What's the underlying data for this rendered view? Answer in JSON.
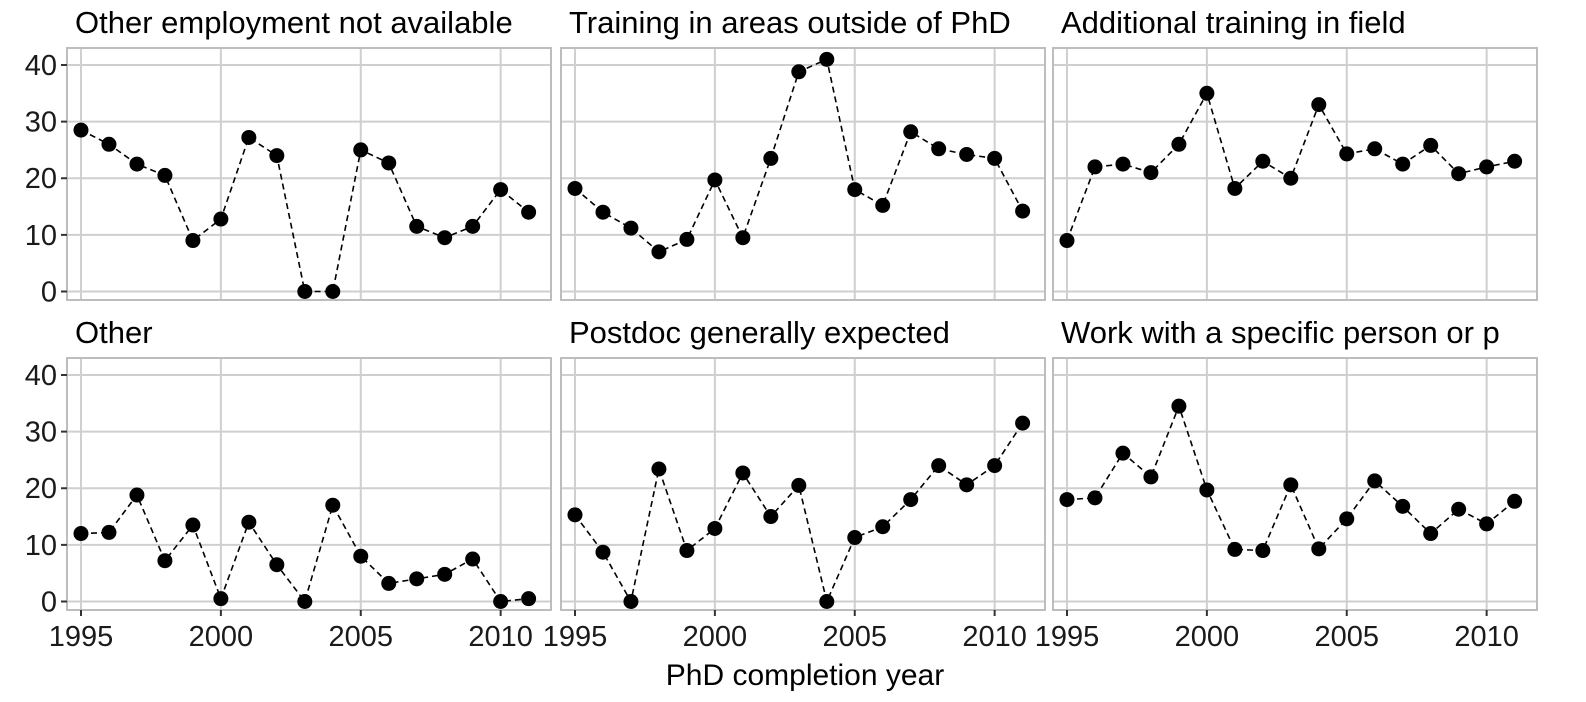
{
  "chart_data": {
    "type": "scatter",
    "layout": "facet-grid 2x3",
    "xlabel": "PhD completion year",
    "ylabel": "",
    "x": [
      1995,
      1996,
      1997,
      1998,
      1999,
      2000,
      2001,
      2002,
      2003,
      2004,
      2005,
      2006,
      2007,
      2008,
      2009,
      2010,
      2011
    ],
    "xlim": [
      1994.5,
      2011.8
    ],
    "ylim": [
      -1.5,
      43
    ],
    "x_ticks": [
      1995,
      2000,
      2005,
      2010
    ],
    "y_ticks": [
      0,
      10,
      20,
      30,
      40
    ],
    "grid": true,
    "legend": "none",
    "line_style": "dashed",
    "marker": "filled-circle",
    "color": "#000000",
    "panels": [
      {
        "title": "Other employment not available",
        "values": [
          28.5,
          26,
          22.5,
          20.5,
          9,
          12.8,
          27.2,
          24,
          0,
          0,
          25,
          22.7,
          11.5,
          9.5,
          11.5,
          18,
          14
        ]
      },
      {
        "title": "Training in areas outside of PhD",
        "values": [
          18.2,
          14,
          11.2,
          7,
          9.2,
          19.7,
          9.5,
          23.5,
          38.8,
          41,
          18,
          15.2,
          28.2,
          25.2,
          24.2,
          23.5,
          14.2
        ]
      },
      {
        "title": "Additional training in field",
        "values": [
          9,
          22,
          22.5,
          21,
          26,
          35,
          18.2,
          23,
          20,
          33,
          24.3,
          25.2,
          22.5,
          25.8,
          20.8,
          22,
          23
        ]
      },
      {
        "title": "Other",
        "values": [
          12,
          12.2,
          18.8,
          7.2,
          13.5,
          0.5,
          14,
          6.5,
          0,
          17,
          8,
          3.2,
          4,
          4.8,
          7.5,
          0,
          0.5
        ]
      },
      {
        "title": "Postdoc generally expected",
        "values": [
          15.3,
          8.7,
          0,
          23.4,
          9,
          12.9,
          22.7,
          15,
          20.5,
          0,
          11.3,
          13.2,
          18,
          24,
          20.6,
          24,
          31.5
        ]
      },
      {
        "title": "Work with a specific person or p",
        "values": [
          18,
          18.3,
          26.2,
          22,
          34.5,
          19.7,
          9.2,
          9,
          20.6,
          9.3,
          14.6,
          21.3,
          16.8,
          12,
          16.3,
          13.7,
          17.7
        ]
      }
    ]
  }
}
